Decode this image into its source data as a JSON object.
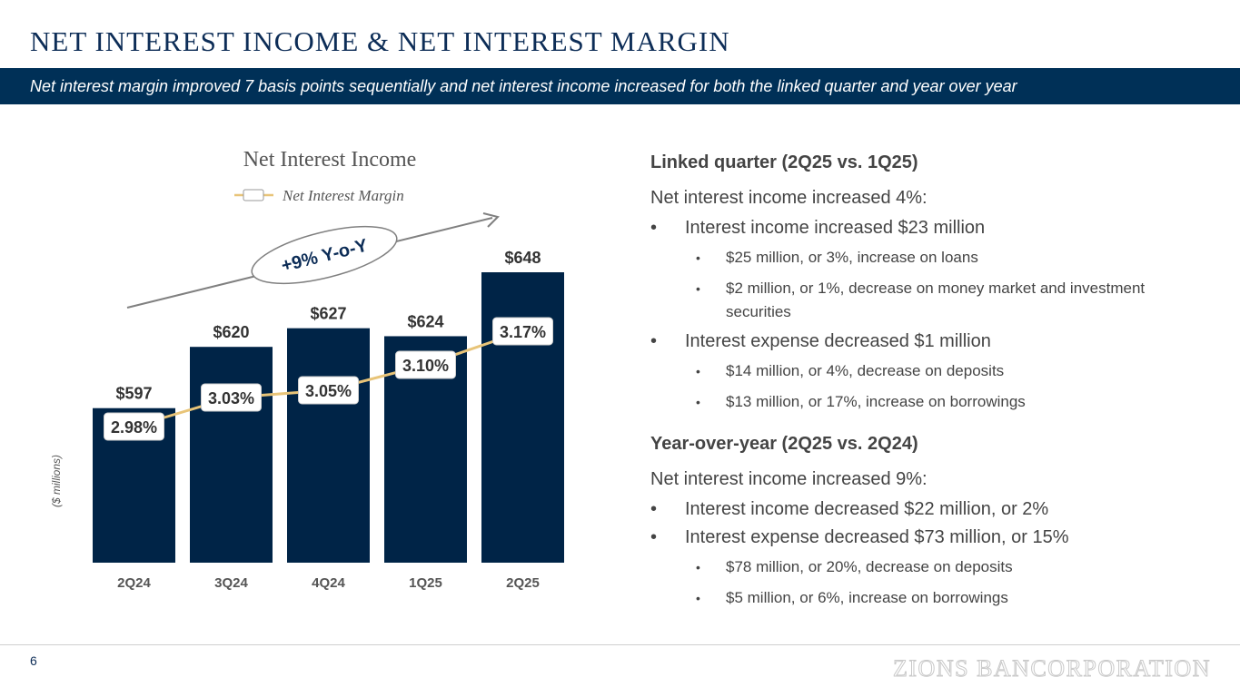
{
  "title": "NET INTEREST INCOME & NET INTEREST MARGIN",
  "subtitle": "Net interest margin improved 7 basis points sequentially and net interest income increased for both the linked quarter and year over year",
  "chart_data": {
    "type": "bar",
    "title": "Net Interest Income",
    "legend": "Net Interest Margin",
    "ylabel": "($ millions)",
    "categories": [
      "2Q24",
      "3Q24",
      "4Q24",
      "1Q25",
      "2Q25"
    ],
    "values": [
      597,
      620,
      627,
      624,
      648
    ],
    "value_labels": [
      "$597",
      "$620",
      "$627",
      "$624",
      "$648"
    ],
    "line_series": {
      "name": "Net Interest Margin",
      "values": [
        2.98,
        3.03,
        3.05,
        3.1,
        3.17
      ],
      "labels": [
        "2.98%",
        "3.03%",
        "3.05%",
        "3.10%",
        "3.17%"
      ]
    },
    "annotation": "+9% Y-o-Y",
    "colors": {
      "bar": "#002447",
      "line": "#e8c478",
      "arrow": "#808080"
    }
  },
  "linked": {
    "heading": "Linked quarter (2Q25 vs. 1Q25)",
    "lead": "Net interest income increased 4%:",
    "b1": "Interest income increased $23 million",
    "b1a": "$25 million, or 3%, increase on loans",
    "b1b": "$2 million, or 1%, decrease on money market and investment securities",
    "b2": "Interest expense decreased $1 million",
    "b2a": "$14 million, or 4%, decrease on deposits",
    "b2b": "$13 million, or 17%, increase on borrowings"
  },
  "yoy": {
    "heading": "Year-over-year (2Q25 vs. 2Q24)",
    "lead": "Net interest income increased 9%:",
    "b1": "Interest income decreased $22 million, or 2%",
    "b2": "Interest expense decreased $73 million, or 15%",
    "b2a": "$78 million, or 20%, decrease on deposits",
    "b2b": "$5 million, or 6%, increase on borrowings"
  },
  "footer": {
    "page": "6",
    "logo": "ZIONS BANCORPORATION"
  }
}
